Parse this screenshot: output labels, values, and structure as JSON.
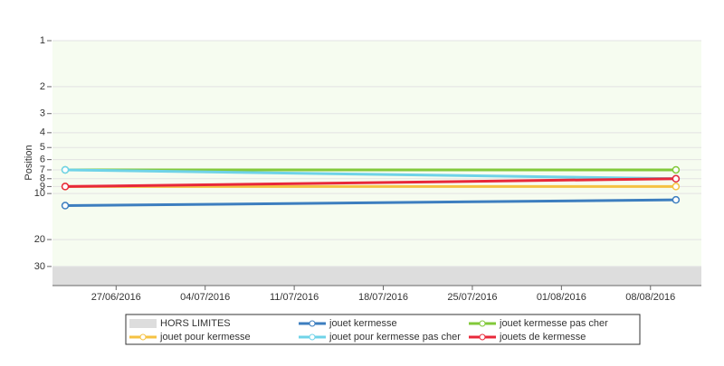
{
  "chart_data": {
    "type": "line",
    "y_label": "Position",
    "y_log": true,
    "y_reversed": true,
    "ylim": [
      1,
      40
    ],
    "yticks": [
      1,
      2,
      3,
      4,
      5,
      6,
      7,
      8,
      9,
      10,
      20,
      30
    ],
    "xlim": [
      "22/06/2016",
      "12/08/2016"
    ],
    "xticks": [
      "27/06/2016",
      "04/07/2016",
      "11/07/2016",
      "18/07/2016",
      "25/07/2016",
      "01/08/2016",
      "08/08/2016"
    ],
    "band": {
      "name": "HORS LIMITES",
      "color": "#dddddd",
      "from": 30
    },
    "x": [
      "23/06/2016",
      "10/08/2016"
    ],
    "series": [
      {
        "name": "jouet kermesse",
        "color": "#3d7ebf",
        "values": [
          12,
          11
        ]
      },
      {
        "name": "jouet kermesse pas cher",
        "color": "#82c93a",
        "values": [
          7,
          7
        ]
      },
      {
        "name": "jouet pour kermesse",
        "color": "#f5c242",
        "values": [
          9,
          9
        ]
      },
      {
        "name": "jouet pour kermesse pas cher",
        "color": "#6fd3e8",
        "values": [
          7,
          8
        ]
      },
      {
        "name": "jouets de kermesse",
        "color": "#e8283a",
        "values": [
          9,
          8
        ]
      }
    ]
  }
}
